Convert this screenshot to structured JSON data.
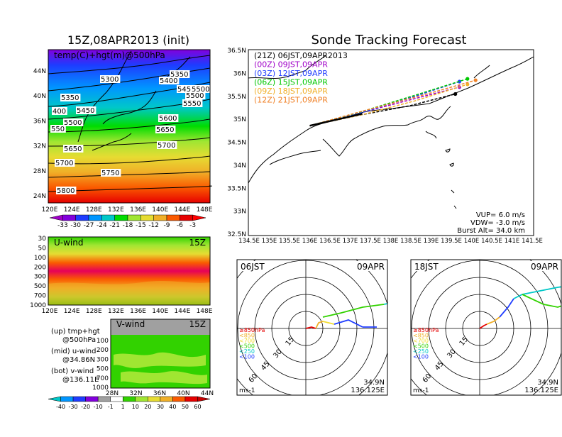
{
  "left_title": "15Z,08APR2013 (init)",
  "right_title": "Sonde Tracking Forecast",
  "panel_500": {
    "inner_label": "temp(C)+hgt(m)@500hPa",
    "y_ticks": [
      "44N",
      "40N",
      "36N",
      "32N",
      "28N",
      "24N"
    ],
    "x_ticks": [
      "120E",
      "124E",
      "128E",
      "132E",
      "136E",
      "140E",
      "144E",
      "148E"
    ],
    "colorbar_labels": [
      "-33",
      "-30",
      "-27",
      "-24",
      "-21",
      "-18",
      "-15",
      "-12",
      "-9",
      "-6",
      "-3"
    ],
    "colorbar_colors": [
      "#a000c8",
      "#8200dc",
      "#1e3cff",
      "#0096ff",
      "#00c8c8",
      "#00dc00",
      "#a0e632",
      "#e6dc32",
      "#f0af28",
      "#fa5a00",
      "#e60000",
      "#ff0000"
    ],
    "contour_labels": [
      {
        "text": "5300"
      },
      {
        "text": "5350"
      },
      {
        "text": "5400"
      },
      {
        "text": "5450"
      },
      {
        "text": "5500"
      },
      {
        "text": "5350"
      },
      {
        "text": "5450"
      },
      {
        "text": "5550"
      },
      {
        "text": "5600"
      },
      {
        "text": "5650"
      },
      {
        "text": "5700"
      },
      {
        "text": "5750"
      },
      {
        "text": "5800"
      },
      {
        "text": "5500"
      },
      {
        "text": "5650"
      },
      {
        "text": "5700"
      },
      {
        "text": "400"
      },
      {
        "text": "550"
      },
      {
        "text": "5500"
      }
    ]
  },
  "panel_u": {
    "inner_label": "U-wind",
    "time_label": "15Z",
    "y_ticks": [
      "30",
      "50",
      "100",
      "200",
      "300",
      "500",
      "700",
      "1000"
    ],
    "x_ticks": [
      "120E",
      "124E",
      "128E",
      "132E",
      "136E",
      "140E",
      "144E",
      "148E"
    ]
  },
  "panel_v": {
    "inner_label": "V-wind",
    "time_label": "15Z",
    "y_ticks": [
      "100",
      "200",
      "300",
      "500",
      "700",
      "1000"
    ],
    "x_ticks": [
      "28N",
      "32N",
      "36N",
      "40N",
      "44N"
    ]
  },
  "legend_text": {
    "up_1": "(up)  tmp+hgt",
    "up_2": "@500hPa",
    "mid_1": "(mid)  u-wind",
    "mid_2": "@34.86N",
    "bot_1": "(bot)  v-wind",
    "bot_2": "@136.11E"
  },
  "wind_colorbar": {
    "labels": [
      "-40",
      "-30",
      "-20",
      "-10",
      "-1",
      "1",
      "10",
      "20",
      "30",
      "40",
      "50",
      "60"
    ],
    "colors": [
      "#00c8c8",
      "#0096ff",
      "#1e3cff",
      "#8200dc",
      "#a0a0a0",
      "#ffffff",
      "#32d200",
      "#a0e632",
      "#e6dc32",
      "#f0af28",
      "#fa5a00",
      "#e60000",
      "#c80000"
    ]
  },
  "track_map": {
    "legend": [
      {
        "label": "(21Z)  06JST,09APR2013",
        "color": "#000000"
      },
      {
        "label": "(00Z)  09JST,09APR",
        "color": "#a000c8"
      },
      {
        "label": "(03Z)  12JST,09APR",
        "color": "#1e3cff"
      },
      {
        "label": "(06Z)  15JST,09APR",
        "color": "#00c800"
      },
      {
        "label": "(09Z)  18JST,09APR",
        "color": "#f0af28"
      },
      {
        "label": "(12Z)  21JST,09APR",
        "color": "#f08228"
      }
    ],
    "y_ticks": [
      "36.5N",
      "36N",
      "35.5N",
      "35N",
      "34.5N",
      "34N",
      "33.5N",
      "33N",
      "32.5N"
    ],
    "x_ticks": [
      "134.5E",
      "135E",
      "135.5E",
      "136E",
      "136.5E",
      "137E",
      "137.5E",
      "138E",
      "138.5E",
      "139E",
      "139.5E",
      "140E",
      "140.5E",
      "141E",
      "141.5E"
    ],
    "params": [
      "VUP=  6.0  m/s",
      "VDW= -3.0  m/s",
      "Burst Alt=  34.0  km"
    ],
    "tracks": [
      {
        "color": "#000000",
        "points": [
          [
            136.0,
            34.86
          ],
          [
            137.3,
            35.1
          ],
          [
            138.5,
            35.3
          ],
          [
            139.6,
            35.55
          ]
        ]
      },
      {
        "color": "#a000c8",
        "points": [
          [
            136.0,
            34.86
          ],
          [
            137.3,
            35.15
          ],
          [
            138.6,
            35.45
          ],
          [
            139.7,
            35.7
          ]
        ]
      },
      {
        "color": "#1e3cff",
        "points": [
          [
            136.0,
            34.86
          ],
          [
            137.3,
            35.15
          ],
          [
            138.6,
            35.5
          ],
          [
            139.7,
            35.82
          ]
        ]
      },
      {
        "color": "#00c800",
        "points": [
          [
            136.0,
            34.86
          ],
          [
            137.3,
            35.17
          ],
          [
            138.7,
            35.55
          ],
          [
            139.9,
            35.88
          ]
        ]
      },
      {
        "color": "#f0af28",
        "points": [
          [
            136.0,
            34.86
          ],
          [
            137.3,
            35.1
          ],
          [
            138.6,
            35.4
          ],
          [
            139.9,
            35.76
          ]
        ]
      },
      {
        "color": "#f08228",
        "points": [
          [
            136.0,
            34.86
          ],
          [
            137.4,
            35.2
          ],
          [
            138.9,
            35.55
          ],
          [
            140.1,
            35.85
          ]
        ]
      }
    ]
  },
  "hodo_left": {
    "time": "06JST",
    "date": "09APR",
    "ring_labels": [
      "15",
      "30",
      "45",
      "60"
    ],
    "levels": [
      {
        "label": "≥850hPa",
        "color": "#e60000"
      },
      {
        "label": "<850",
        "color": "#f0af28"
      },
      {
        "label": "<700",
        "color": "#f0dc32"
      },
      {
        "label": "<500",
        "color": "#32d200"
      },
      {
        "label": "<250",
        "color": "#00c8c8"
      },
      {
        "label": "<100",
        "color": "#1e3cff"
      }
    ],
    "unit": "ms-1",
    "loc_1": "34.9N",
    "loc_2": "136.125E"
  },
  "hodo_right": {
    "time": "18JST",
    "date": "09APR",
    "ring_labels": [
      "15",
      "30",
      "45",
      "60"
    ],
    "levels": [
      {
        "label": "≥850hPa",
        "color": "#e60000"
      },
      {
        "label": "<850",
        "color": "#f0af28"
      },
      {
        "label": "<700",
        "color": "#f0dc32"
      },
      {
        "label": "<500",
        "color": "#32d200"
      },
      {
        "label": "<250",
        "color": "#00c8c8"
      },
      {
        "label": "<100",
        "color": "#1e3cff"
      }
    ],
    "unit": "ms-1",
    "loc_1": "34.9N",
    "loc_2": "136.125E"
  }
}
